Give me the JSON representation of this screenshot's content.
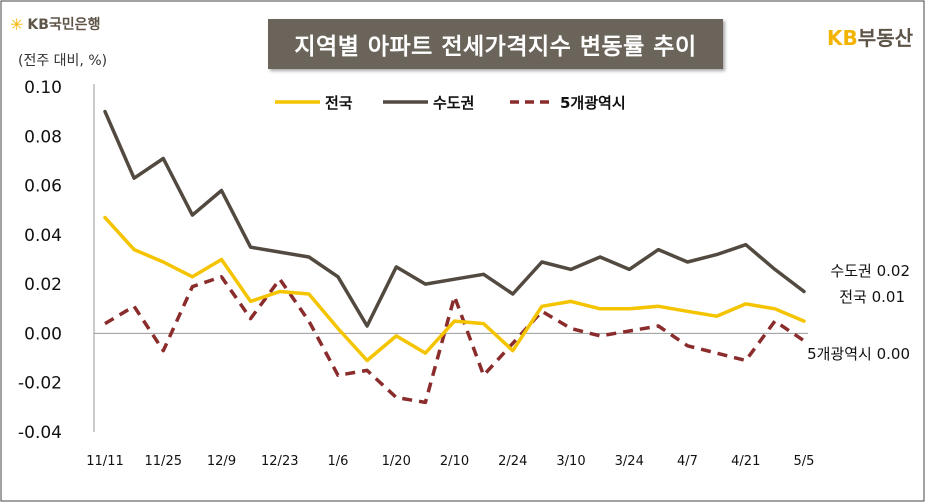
{
  "header": {
    "title": "지역별 아파트 전세가격지수 변동률 추이",
    "bank_logo": "KB국민은행",
    "realty_logo_kb": "KB",
    "realty_logo_text": "부동산",
    "unit": "(전주 대비, %)"
  },
  "colors": {
    "national": "#f5c400",
    "capital": "#524a40",
    "metro": "#8b2c2c"
  },
  "chart_data": {
    "type": "line",
    "title": "지역별 아파트 전세가격지수 변동률 추이",
    "ylabel": "(전주 대비, %)",
    "ylim": [
      -0.04,
      0.1
    ],
    "yticks": [
      "0.10",
      "0.08",
      "0.06",
      "0.04",
      "0.02",
      "0.00",
      "-0.02",
      "-0.04"
    ],
    "ytick_values": [
      0.1,
      0.08,
      0.06,
      0.04,
      0.02,
      0.0,
      -0.02,
      -0.04
    ],
    "x_labels": [
      "11/11",
      "11/25",
      "12/9",
      "12/23",
      "1/6",
      "1/20",
      "2/10",
      "2/24",
      "3/10",
      "3/24",
      "4/7",
      "4/21",
      "5/5"
    ],
    "x_label_positions": [
      0,
      2,
      4,
      6,
      8,
      10,
      12,
      14,
      16,
      18,
      20,
      22,
      24
    ],
    "num_points": 25,
    "series": [
      {
        "name": "전국",
        "key": "national",
        "style": "solid",
        "values": [
          0.047,
          0.034,
          0.029,
          0.023,
          0.03,
          0.013,
          0.017,
          0.016,
          0.002,
          -0.011,
          -0.001,
          -0.008,
          0.005,
          0.004,
          -0.007,
          0.011,
          0.013,
          0.01,
          0.01,
          0.011,
          0.009,
          0.007,
          0.012,
          0.01,
          0.005
        ]
      },
      {
        "name": "수도권",
        "key": "capital",
        "style": "solid",
        "values": [
          0.09,
          0.063,
          0.071,
          0.048,
          0.058,
          0.035,
          0.033,
          0.031,
          0.023,
          0.003,
          0.027,
          0.02,
          0.022,
          0.024,
          0.016,
          0.029,
          0.026,
          0.031,
          0.026,
          0.034,
          0.029,
          0.032,
          0.036,
          0.026,
          0.017
        ]
      },
      {
        "name": "5개광역시",
        "key": "metro",
        "style": "dashed",
        "values": [
          0.004,
          0.011,
          -0.007,
          0.019,
          0.023,
          0.006,
          0.022,
          0.005,
          -0.017,
          -0.015,
          -0.026,
          -0.028,
          0.015,
          -0.017,
          -0.004,
          0.009,
          0.002,
          -0.001,
          0.001,
          0.003,
          -0.005,
          -0.008,
          -0.011,
          0.005,
          -0.003
        ]
      }
    ],
    "end_labels": [
      {
        "key": "capital",
        "name": "수도권",
        "value": "0.02"
      },
      {
        "key": "national",
        "name": "전국",
        "value": "0.01"
      },
      {
        "key": "metro",
        "name": "5개광역시",
        "value": "0.00"
      }
    ],
    "legend": [
      "전국",
      "수도권",
      "5개광역시"
    ],
    "legend_position": "top-center"
  }
}
